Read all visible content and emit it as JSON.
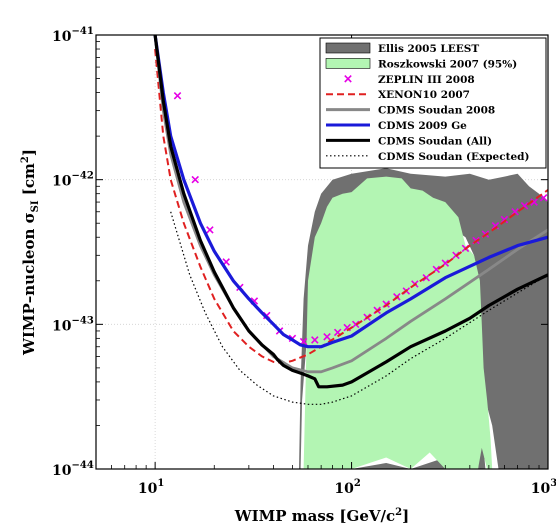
{
  "chart_data": {
    "type": "line",
    "title": "",
    "xlabel_main": "WIMP mass [GeV/c",
    "xlabel_sup": "2",
    "xlabel_end": "]",
    "ylabel_main": "WIMP–nucleon σ",
    "ylabel_sub": "SI",
    "ylabel_unit": " [cm",
    "ylabel_sup": "2",
    "ylabel_end": "]",
    "x_scale": "log",
    "y_scale": "log",
    "xlim": [
      5,
      1000
    ],
    "ylim": [
      1e-44,
      1e-41
    ],
    "x_ticks": [
      {
        "value": 10,
        "base": "10",
        "exp": "1"
      },
      {
        "value": 100,
        "base": "10",
        "exp": "2"
      },
      {
        "value": 1000,
        "base": "10",
        "exp": "3"
      }
    ],
    "y_ticks": [
      {
        "value": 1e-44,
        "base": "10",
        "exp": "−44"
      },
      {
        "value": 1e-43,
        "base": "10",
        "exp": "−43"
      },
      {
        "value": 1e-42,
        "base": "10",
        "exp": "−42"
      },
      {
        "value": 1e-41,
        "base": "10",
        "exp": "−41"
      }
    ],
    "grid": true,
    "legend_position": "top-right",
    "colors": {
      "ellis": "#707070",
      "roszkowski": "#b3f5b3",
      "zeplin": "#e600e6",
      "xenon": "#e02020",
      "cdms2008": "#888888",
      "cdms2009": "#1a1ad9",
      "cdms_all": "#000000",
      "cdms_expected": "#000000"
    },
    "series": [
      {
        "name": "Ellis 2005 LEEST",
        "kind": "region",
        "color_key": "ellis",
        "points": [
          [
            65,
            6e-43
          ],
          [
            70,
            8e-43
          ],
          [
            80,
            1e-42
          ],
          [
            100,
            1.1e-42
          ],
          [
            150,
            1.2e-42
          ],
          [
            200,
            1.1e-42
          ],
          [
            300,
            1.05e-42
          ],
          [
            400,
            1.1e-42
          ],
          [
            500,
            1e-42
          ],
          [
            600,
            1.05e-42
          ],
          [
            700,
            1.1e-42
          ],
          [
            800,
            9e-43
          ],
          [
            900,
            8e-43
          ],
          [
            1000,
            7e-43
          ],
          [
            1000,
            1e-44
          ],
          [
            560,
            1e-44
          ],
          [
            520,
            2e-44
          ],
          [
            480,
            3e-44
          ],
          [
            460,
            5e-44
          ],
          [
            450,
            8e-44
          ],
          [
            440,
            1.5e-43
          ],
          [
            420,
            3e-43
          ],
          [
            380,
            4e-43
          ],
          [
            300,
            5e-43
          ],
          [
            200,
            6e-43
          ],
          [
            150,
            6e-43
          ],
          [
            100,
            5e-43
          ],
          [
            80,
            4e-43
          ],
          [
            70,
            2e-43
          ],
          [
            60,
            1e-43
          ],
          [
            56,
            3e-44
          ],
          [
            55,
            1e-44
          ],
          [
            80,
            1e-44
          ],
          [
            90,
            1.3e-44
          ],
          [
            100,
            1e-44
          ],
          [
            150,
            1.1e-44
          ],
          [
            200,
            1e-44
          ],
          [
            300,
            1.2e-44
          ],
          [
            400,
            1e-44
          ],
          [
            440,
            1e-44
          ],
          [
            460,
            1.8e-44
          ],
          [
            470,
            1.4e-44
          ],
          [
            480,
            1e-44
          ],
          [
            140,
            1e-44
          ],
          [
            100,
            1e-44
          ],
          [
            60,
            1e-44
          ],
          [
            56,
            1e-44
          ],
          [
            54,
            1e-44
          ],
          [
            55,
            4e-44
          ],
          [
            57,
            1.5e-43
          ],
          [
            60,
            3.5e-43
          ],
          [
            65,
            6e-43
          ]
        ]
      },
      {
        "name": "Roszkowski 2007 (95%)",
        "kind": "region",
        "color_key": "roszkowski",
        "points": [
          [
            57,
            1e-44
          ],
          [
            60,
            2e-43
          ],
          [
            65,
            4e-43
          ],
          [
            70,
            5e-43
          ],
          [
            75,
            6.5e-43
          ],
          [
            80,
            7.5e-43
          ],
          [
            90,
            8e-43
          ],
          [
            100,
            8.2e-43
          ],
          [
            120,
            1.02e-42
          ],
          [
            150,
            1.05e-42
          ],
          [
            180,
            1.02e-42
          ],
          [
            200,
            8.7e-43
          ],
          [
            230,
            8.4e-43
          ],
          [
            260,
            7.5e-43
          ],
          [
            300,
            7e-43
          ],
          [
            350,
            5.5e-43
          ],
          [
            380,
            3.5e-43
          ],
          [
            420,
            3e-43
          ],
          [
            450,
            2e-43
          ],
          [
            460,
            1e-43
          ],
          [
            470,
            5e-44
          ],
          [
            490,
            3e-44
          ],
          [
            500,
            2.2e-44
          ],
          [
            510,
            1.6e-44
          ],
          [
            520,
            1e-44
          ],
          [
            490,
            1e-44
          ],
          [
            460,
            1.4e-44
          ],
          [
            440,
            1e-44
          ],
          [
            300,
            1e-44
          ],
          [
            250,
            1.3e-44
          ],
          [
            200,
            1e-44
          ],
          [
            150,
            1.2e-44
          ],
          [
            100,
            1e-44
          ],
          [
            80,
            1e-44
          ],
          [
            70,
            1e-44
          ],
          [
            57,
            1e-44
          ]
        ]
      },
      {
        "name": "ZEPLIN III 2008",
        "kind": "markers",
        "color_key": "zeplin",
        "points": [
          [
            13,
            3.8e-42
          ],
          [
            16,
            1e-42
          ],
          [
            19,
            4.5e-43
          ],
          [
            23,
            2.7e-43
          ],
          [
            27,
            1.8e-43
          ],
          [
            32,
            1.45e-43
          ],
          [
            37,
            1.15e-43
          ],
          [
            43,
            9e-44
          ],
          [
            50,
            8e-44
          ],
          [
            57,
            7.6e-44
          ],
          [
            65,
            7.8e-44
          ],
          [
            75,
            8.2e-44
          ],
          [
            85,
            8.8e-44
          ],
          [
            95,
            9.5e-44
          ],
          [
            105,
            1e-43
          ],
          [
            120,
            1.12e-43
          ],
          [
            135,
            1.25e-43
          ],
          [
            150,
            1.38e-43
          ],
          [
            170,
            1.55e-43
          ],
          [
            190,
            1.7e-43
          ],
          [
            210,
            1.9e-43
          ],
          [
            240,
            2.1e-43
          ],
          [
            270,
            2.4e-43
          ],
          [
            300,
            2.65e-43
          ],
          [
            340,
            3e-43
          ],
          [
            380,
            3.35e-43
          ],
          [
            430,
            3.8e-43
          ],
          [
            480,
            4.2e-43
          ],
          [
            540,
            4.8e-43
          ],
          [
            600,
            5.3e-43
          ],
          [
            680,
            6e-43
          ],
          [
            760,
            6.6e-43
          ],
          [
            850,
            7e-43
          ],
          [
            950,
            7.5e-43
          ]
        ]
      },
      {
        "name": "XENON10 2007",
        "kind": "dashed",
        "color_key": "xenon",
        "points": [
          [
            10,
            8e-42
          ],
          [
            11,
            2e-42
          ],
          [
            12,
            1e-42
          ],
          [
            14,
            5e-43
          ],
          [
            17,
            2.5e-43
          ],
          [
            20,
            1.5e-43
          ],
          [
            25,
            9e-44
          ],
          [
            30,
            7e-44
          ],
          [
            35,
            6e-44
          ],
          [
            40,
            5.5e-44
          ],
          [
            45,
            5.4e-44
          ],
          [
            50,
            5.6e-44
          ],
          [
            60,
            6.2e-44
          ],
          [
            70,
            7e-44
          ],
          [
            100,
            9.5e-44
          ],
          [
            150,
            1.35e-43
          ],
          [
            200,
            1.8e-43
          ],
          [
            300,
            2.6e-43
          ],
          [
            400,
            3.5e-43
          ],
          [
            500,
            4.3e-43
          ],
          [
            700,
            6e-43
          ],
          [
            1000,
            8.5e-43
          ]
        ]
      },
      {
        "name": "CDMS Soudan 2008",
        "kind": "line",
        "color_key": "cdms2008",
        "points": [
          [
            10,
            1e-41
          ],
          [
            11,
            3e-42
          ],
          [
            12,
            1.5e-42
          ],
          [
            14,
            7e-43
          ],
          [
            17,
            3.5e-43
          ],
          [
            20,
            2.2e-43
          ],
          [
            25,
            1.3e-43
          ],
          [
            30,
            9e-44
          ],
          [
            40,
            6e-44
          ],
          [
            50,
            5e-44
          ],
          [
            60,
            4.7e-44
          ],
          [
            70,
            4.7e-44
          ],
          [
            80,
            5e-44
          ],
          [
            100,
            5.6e-44
          ],
          [
            150,
            8e-44
          ],
          [
            200,
            1.05e-43
          ],
          [
            300,
            1.5e-43
          ],
          [
            500,
            2.4e-43
          ],
          [
            700,
            3.3e-43
          ],
          [
            1000,
            4.5e-43
          ]
        ]
      },
      {
        "name": "CDMS 2009 Ge",
        "kind": "line",
        "color_key": "cdms2009",
        "points": [
          [
            10,
            1e-41
          ],
          [
            11,
            4e-42
          ],
          [
            12,
            2e-42
          ],
          [
            14,
            1e-42
          ],
          [
            17,
            5e-43
          ],
          [
            20,
            3.2e-43
          ],
          [
            25,
            2e-43
          ],
          [
            30,
            1.5e-43
          ],
          [
            35,
            1.2e-43
          ],
          [
            40,
            1e-43
          ],
          [
            45,
            8.5e-44
          ],
          [
            50,
            7.8e-44
          ],
          [
            55,
            7.2e-44
          ],
          [
            60,
            7e-44
          ],
          [
            70,
            7e-44
          ],
          [
            80,
            7.5e-44
          ],
          [
            100,
            8.3e-44
          ],
          [
            150,
            1.2e-43
          ],
          [
            200,
            1.5e-43
          ],
          [
            300,
            2.1e-43
          ],
          [
            500,
            2.9e-43
          ],
          [
            700,
            3.5e-43
          ],
          [
            1000,
            4e-43
          ]
        ]
      },
      {
        "name": "CDMS Soudan (All)",
        "kind": "line",
        "color_key": "cdms_all",
        "points": [
          [
            10,
            1e-41
          ],
          [
            11,
            3.5e-42
          ],
          [
            12,
            1.7e-42
          ],
          [
            14,
            8e-43
          ],
          [
            17,
            3.8e-43
          ],
          [
            20,
            2.3e-43
          ],
          [
            25,
            1.3e-43
          ],
          [
            30,
            9e-44
          ],
          [
            35,
            7.2e-44
          ],
          [
            40,
            6.2e-44
          ],
          [
            42,
            5.7e-44
          ],
          [
            45,
            5.2e-44
          ],
          [
            50,
            4.8e-44
          ],
          [
            55,
            4.6e-44
          ],
          [
            60,
            4.4e-44
          ],
          [
            65,
            4.2e-44
          ],
          [
            68,
            3.7e-44
          ],
          [
            75,
            3.7e-44
          ],
          [
            90,
            3.8e-44
          ],
          [
            100,
            4e-44
          ],
          [
            150,
            5.5e-44
          ],
          [
            200,
            7e-44
          ],
          [
            300,
            9e-44
          ],
          [
            400,
            1.1e-43
          ],
          [
            500,
            1.35e-43
          ],
          [
            700,
            1.75e-43
          ],
          [
            1000,
            2.2e-43
          ]
        ]
      },
      {
        "name": "CDMS Soudan (Expected)",
        "kind": "dotted",
        "color_key": "cdms_expected",
        "points": [
          [
            12,
            6e-43
          ],
          [
            15,
            2.2e-43
          ],
          [
            18,
            1.2e-43
          ],
          [
            22,
            7e-44
          ],
          [
            27,
            4.8e-44
          ],
          [
            33,
            3.8e-44
          ],
          [
            40,
            3.2e-44
          ],
          [
            50,
            2.9e-44
          ],
          [
            60,
            2.8e-44
          ],
          [
            70,
            2.8e-44
          ],
          [
            80,
            2.9e-44
          ],
          [
            100,
            3.2e-44
          ],
          [
            150,
            4.4e-44
          ],
          [
            200,
            5.8e-44
          ],
          [
            300,
            8e-44
          ],
          [
            500,
            1.25e-43
          ],
          [
            700,
            1.65e-43
          ],
          [
            1000,
            2.2e-43
          ]
        ]
      }
    ]
  }
}
